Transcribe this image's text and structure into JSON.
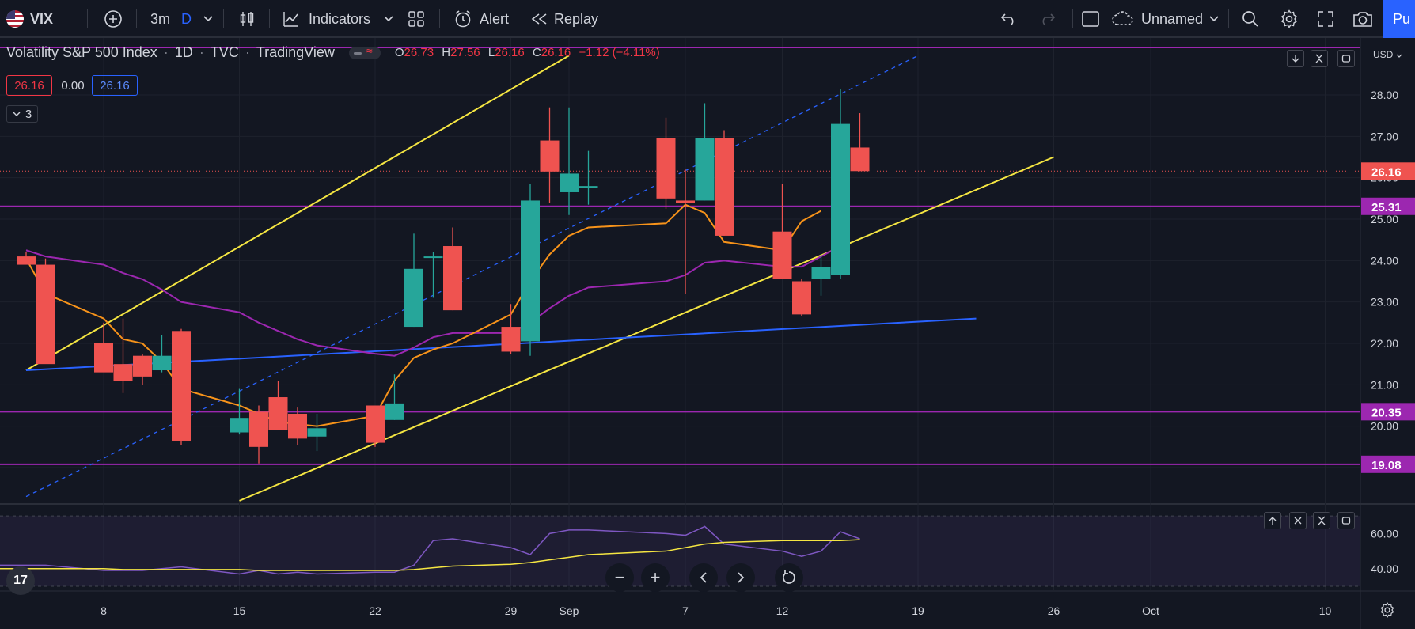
{
  "toolbar": {
    "symbol": "VIX",
    "interval": "3m",
    "chart_interval": "D",
    "indicators_label": "Indicators",
    "alert_label": "Alert",
    "replay_label": "Replay",
    "layout_name": "Unnamed",
    "publish_label": "Pu"
  },
  "legend": {
    "name": "Volatility S&P 500 Index",
    "interval": "1D",
    "exchange": "TVC",
    "source": "TradingView",
    "o_label": "O",
    "o_value": "26.73",
    "h_label": "H",
    "h_value": "27.56",
    "l_label": "L",
    "l_value": "26.16",
    "c_label": "C",
    "c_value": "26.16",
    "change": "−1.12 (−4.11%)",
    "bid": "26.16",
    "spread": "0.00",
    "ask": "26.16",
    "indicator_count": "3"
  },
  "currency": "USD",
  "colors": {
    "background": "#131722",
    "up": "#26a69a",
    "down": "#ef5350",
    "channel": "#f5e642",
    "trendline": "#2962ff",
    "ma_fast": "#f7931a",
    "ma_slow": "#9c27b0",
    "level": "#9c27b0",
    "rsi": "#7e57c2",
    "rsi_ma": "#f5e642"
  },
  "chart_data": {
    "type": "candlestick",
    "y_ticks": [
      "28.00",
      "27.00",
      "26.00",
      "25.00",
      "24.00",
      "23.00",
      "22.00",
      "21.00",
      "20.00",
      "19.00"
    ],
    "x_ticks": [
      "8",
      "15",
      "22",
      "29",
      "Sep",
      "7",
      "12",
      "19",
      "26",
      "Oct",
      "10"
    ],
    "ylim": [
      18.2,
      28.95
    ],
    "price_labels": [
      {
        "value": 26.16,
        "text": "26.16",
        "kind": "last"
      },
      {
        "value": 25.31,
        "text": "25.31",
        "kind": "level"
      },
      {
        "value": 20.35,
        "text": "20.35",
        "kind": "level"
      },
      {
        "value": 19.08,
        "text": "19.08",
        "kind": "level"
      }
    ],
    "candles": [
      {
        "date": "Aug 4",
        "o": 24.1,
        "h": 24.2,
        "l": 24.0,
        "c": 23.9
      },
      {
        "date": "Aug 5",
        "o": 23.9,
        "h": 24.05,
        "l": 21.6,
        "c": 21.5
      },
      {
        "date": "Aug 8",
        "o": 22.0,
        "h": 22.5,
        "l": 21.4,
        "c": 21.3
      },
      {
        "date": "Aug 9",
        "o": 21.5,
        "h": 22.6,
        "l": 20.8,
        "c": 21.1
      },
      {
        "date": "Aug 10",
        "o": 21.7,
        "h": 21.75,
        "l": 21.0,
        "c": 21.2
      },
      {
        "date": "Aug 11",
        "o": 21.35,
        "h": 22.2,
        "l": 21.3,
        "c": 21.7
      },
      {
        "date": "Aug 12",
        "o": 22.3,
        "h": 22.35,
        "l": 19.55,
        "c": 19.65
      },
      {
        "date": "Aug 15",
        "o": 19.85,
        "h": 20.9,
        "l": 19.8,
        "c": 20.2
      },
      {
        "date": "Aug 16",
        "o": 20.35,
        "h": 20.5,
        "l": 19.1,
        "c": 19.5
      },
      {
        "date": "Aug 17",
        "o": 20.7,
        "h": 21.1,
        "l": 19.95,
        "c": 19.9
      },
      {
        "date": "Aug 18",
        "o": 20.3,
        "h": 20.45,
        "l": 19.55,
        "c": 19.7
      },
      {
        "date": "Aug 19",
        "o": 19.75,
        "h": 20.3,
        "l": 19.4,
        "c": 19.95
      },
      {
        "date": "Aug 22",
        "o": 20.5,
        "h": 20.5,
        "l": 19.5,
        "c": 19.6
      },
      {
        "date": "Aug 23",
        "o": 20.15,
        "h": 21.25,
        "l": 20.15,
        "c": 20.55
      },
      {
        "date": "Aug 24",
        "o": 22.4,
        "h": 24.65,
        "l": 22.4,
        "c": 23.8
      },
      {
        "date": "Aug 25",
        "o": 24.1,
        "h": 24.2,
        "l": 23.1,
        "c": 24.1
      },
      {
        "date": "Aug 26",
        "o": 24.35,
        "h": 24.8,
        "l": 22.8,
        "c": 22.8
      },
      {
        "date": "Aug 29",
        "o": 22.4,
        "h": 22.95,
        "l": 21.75,
        "c": 21.8
      },
      {
        "date": "Aug 30",
        "o": 22.05,
        "h": 25.85,
        "l": 21.7,
        "c": 25.45
      },
      {
        "date": "Aug 31",
        "o": 26.9,
        "h": 27.7,
        "l": 25.4,
        "c": 26.15
      },
      {
        "date": "Sep 1",
        "o": 25.65,
        "h": 27.7,
        "l": 25.1,
        "c": 26.1
      },
      {
        "date": "Sep 2",
        "o": 25.8,
        "h": 26.65,
        "l": 25.35,
        "c": 25.8
      },
      {
        "date": "Sep 6",
        "o": 26.95,
        "h": 27.45,
        "l": 25.25,
        "c": 25.5
      },
      {
        "date": "Sep 7",
        "o": 25.45,
        "h": 26.2,
        "l": 23.2,
        "c": 25.4
      },
      {
        "date": "Sep 8",
        "o": 25.45,
        "h": 27.8,
        "l": 25.45,
        "c": 26.95
      },
      {
        "date": "Sep 9",
        "o": 26.95,
        "h": 27.15,
        "l": 24.6,
        "c": 24.6
      },
      {
        "date": "Sep 12",
        "o": 24.7,
        "h": 25.85,
        "l": 23.55,
        "c": 23.55
      },
      {
        "date": "Sep 13",
        "o": 23.5,
        "h": 23.55,
        "l": 22.65,
        "c": 22.7
      },
      {
        "date": "Sep 14",
        "o": 23.55,
        "h": 24.15,
        "l": 23.15,
        "c": 23.85
      },
      {
        "date": "Sep 15",
        "o": 23.65,
        "h": 28.15,
        "l": 23.55,
        "c": 27.3
      },
      {
        "date": "Sep 16",
        "o": 26.73,
        "h": 27.56,
        "l": 26.16,
        "c": 26.16
      }
    ],
    "ma_fast": [
      24.05,
      23.2,
      22.6,
      22.1,
      22.0,
      21.55,
      20.9,
      20.5,
      20.3,
      20.1,
      20.05,
      20.0,
      20.25,
      21.1,
      21.65,
      21.85,
      22.0,
      22.7,
      23.5,
      24.15,
      24.6,
      24.8,
      24.9,
      25.35,
      25.15,
      24.45,
      24.25,
      24.95,
      25.2
    ],
    "ma_slow": [
      24.25,
      24.1,
      23.9,
      23.7,
      23.55,
      23.3,
      23.0,
      22.75,
      22.5,
      22.3,
      22.1,
      21.95,
      21.75,
      21.7,
      21.9,
      22.15,
      22.25,
      22.25,
      22.5,
      22.85,
      23.15,
      23.35,
      23.5,
      23.65,
      23.95,
      24.0,
      23.85,
      23.85,
      24.1,
      24.35
    ],
    "ma_slow_dates": [
      "Aug 4",
      "Aug 5",
      "Aug 8",
      "Aug 9",
      "Aug 10",
      "Aug 11",
      "Aug 12",
      "Aug 15",
      "Aug 16",
      "Aug 17",
      "Aug 18",
      "Aug 19",
      "Aug 22",
      "Aug 23",
      "Aug 24",
      "Aug 25",
      "Aug 26",
      "Aug 29",
      "Aug 30",
      "Aug 31",
      "Sep 1",
      "Sep 2",
      "Sep 6",
      "Sep 7",
      "Sep 8",
      "Sep 9",
      "Sep 12",
      "Sep 13",
      "Sep 14",
      "Sep 15"
    ],
    "ma_fast_dates": [
      "Aug 4",
      "Aug 5",
      "Aug 8",
      "Aug 9",
      "Aug 10",
      "Aug 11",
      "Aug 12",
      "Aug 15",
      "Aug 16",
      "Aug 17",
      "Aug 18",
      "Aug 19",
      "Aug 22",
      "Aug 23",
      "Aug 24",
      "Aug 25",
      "Aug 26",
      "Aug 29",
      "Aug 30",
      "Aug 31",
      "Sep 1",
      "Sep 2",
      "Sep 6",
      "Sep 7",
      "Sep 8",
      "Sep 9",
      "Sep 12",
      "Sep 13",
      "Sep 14"
    ],
    "levels": [
      25.31,
      20.35,
      19.08,
      28.15
    ],
    "channel_upper": {
      "x1": "Aug 4",
      "y1": 21.35,
      "x2": "Sep 1",
      "y2": 28.95
    },
    "channel_lower": {
      "x1": "Aug 15",
      "y1": 18.2,
      "x2": "Sep 26",
      "y2": 26.5
    },
    "channel_mid": {
      "x1": "Aug 4",
      "y1": 18.3,
      "x2": "Sep 19",
      "y2": 28.95
    },
    "trendline": {
      "x1": "Aug 4",
      "y1": 21.35,
      "x2": "Sep 22",
      "y2": 22.6
    },
    "rsi": {
      "ticks": [
        "60.00",
        "40.00"
      ],
      "ylim": [
        30,
        75
      ],
      "band": [
        70,
        30
      ],
      "values": [
        42,
        39,
        39,
        39,
        40,
        41,
        37,
        39,
        37,
        38,
        37,
        38,
        38,
        42,
        56,
        57,
        52,
        48,
        60,
        62,
        62,
        60,
        59,
        64,
        54,
        50,
        47,
        50,
        61,
        57
      ],
      "ma": [
        40,
        40,
        39.5,
        39.5,
        39.5,
        39.5,
        39.5,
        39,
        39,
        39,
        39,
        39,
        39,
        39.5,
        40.5,
        41.5,
        42.5,
        43.5,
        45,
        46.5,
        48,
        50,
        52,
        54,
        55,
        56,
        56,
        56,
        56,
        56.5
      ]
    }
  }
}
